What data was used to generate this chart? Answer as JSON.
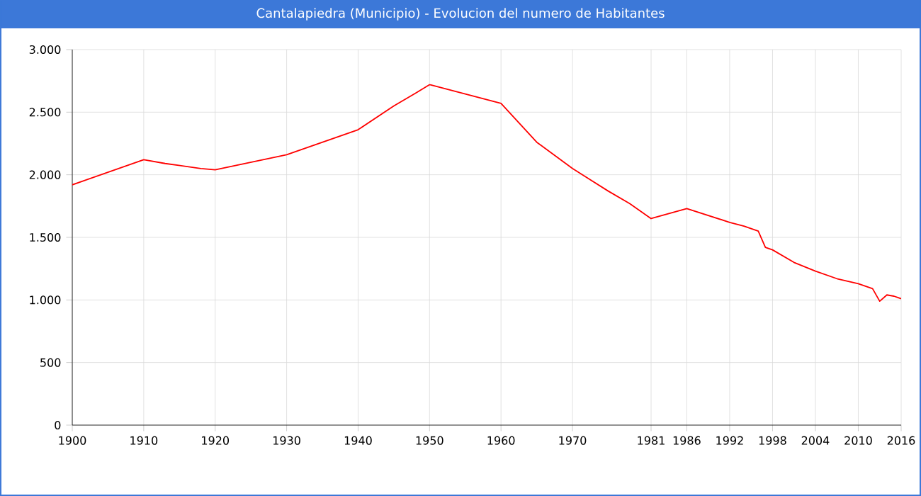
{
  "chart_data": {
    "type": "line",
    "title": "Cantalapiedra (Municipio) - Evolucion del numero de Habitantes",
    "x": [
      1900,
      1910,
      1913,
      1918,
      1920,
      1930,
      1940,
      1945,
      1948,
      1950,
      1960,
      1965,
      1970,
      1975,
      1978,
      1981,
      1986,
      1992,
      1994,
      1996,
      1997,
      1998,
      2001,
      2004,
      2007,
      2010,
      2011,
      2012,
      2013,
      2014,
      2015,
      2016
    ],
    "series": [
      {
        "color": "#ff0000",
        "values": [
          1920,
          2120,
          2090,
          2050,
          2040,
          2160,
          2360,
          2550,
          2650,
          2720,
          2570,
          2260,
          2050,
          1870,
          1770,
          1650,
          1730,
          1620,
          1590,
          1550,
          1420,
          1400,
          1300,
          1230,
          1170,
          1130,
          1110,
          1090,
          990,
          1040,
          1030,
          1010
        ]
      }
    ],
    "xlim": [
      1900,
      2016
    ],
    "xticks": [
      1900,
      1910,
      1920,
      1930,
      1940,
      1950,
      1960,
      1970,
      1981,
      1986,
      1992,
      1998,
      2004,
      2010,
      2016
    ],
    "ylim": [
      0,
      3000
    ],
    "yticks": [
      {
        "value": 0,
        "label": "0"
      },
      {
        "value": 500,
        "label": "500"
      },
      {
        "value": 1000,
        "label": "1.000"
      },
      {
        "value": 1500,
        "label": "1.500"
      },
      {
        "value": 2000,
        "label": "2.000"
      },
      {
        "value": 2500,
        "label": "2.500"
      },
      {
        "value": 3000,
        "label": "3.000"
      }
    ],
    "grid": true,
    "marker": "none",
    "line_style": "solid"
  }
}
